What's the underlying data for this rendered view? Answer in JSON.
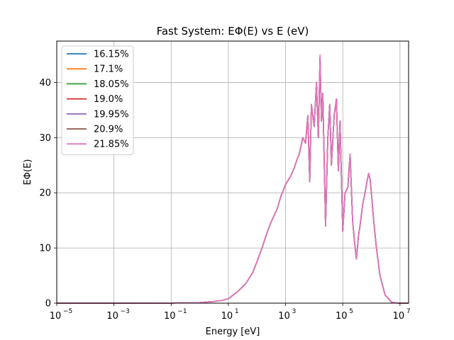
{
  "chart_data": {
    "type": "line",
    "title": "Fast System: EΦ(E) vs E (eV)",
    "xlabel": "Energy [eV]",
    "ylabel": "EΦ(E)",
    "xscale": "log",
    "xlim": [
      1e-05,
      20000000
    ],
    "ylim": [
      0,
      47.5
    ],
    "grid": true,
    "legend_position": "top-left",
    "x_tick_labels": [
      "10",
      "10",
      "10",
      "10",
      "10",
      "10",
      "10"
    ],
    "x_tick_exponents": [
      "−5",
      "−3",
      "−1",
      "1",
      "3",
      "5",
      "7"
    ],
    "x_tick_values": [
      1e-05,
      0.001,
      0.1,
      10,
      1000,
      100000,
      10000000
    ],
    "y_ticks": [
      0,
      10,
      20,
      30,
      40
    ],
    "y_tick_labels": [
      "0",
      "10",
      "20",
      "30",
      "40"
    ],
    "x": [
      1e-05,
      0.001,
      0.1,
      1,
      3,
      6,
      10,
      20,
      40,
      70,
      100,
      150,
      200,
      300,
      500,
      700,
      1000,
      1500,
      2000,
      2500,
      3000,
      4000,
      5000,
      6000,
      7000,
      8000,
      10000,
      12000,
      14000,
      16000,
      18000,
      20000,
      25000,
      30000,
      35000,
      40000,
      50000,
      60000,
      70000,
      80000,
      100000,
      120000,
      150000,
      180000,
      220000,
      270000,
      300000,
      350000,
      400000,
      500000,
      600000,
      700000,
      800000,
      900000,
      1000000,
      1200000,
      1500000,
      2000000,
      3000000,
      5000000,
      7000000,
      10000000,
      14000000,
      20000000
    ],
    "series": [
      {
        "name": "16.15%",
        "color": "#1f77b4",
        "values": [
          0,
          0,
          0.02,
          0.1,
          0.3,
          0.5,
          0.8,
          2.0,
          3.5,
          5.5,
          7.5,
          10,
          12,
          14.5,
          17,
          19.5,
          21.5,
          23,
          24.5,
          26,
          27,
          30,
          29,
          34,
          22,
          36,
          32,
          40,
          30,
          44.5,
          33,
          38,
          14,
          30,
          36,
          25,
          34,
          37,
          24,
          33,
          13,
          20,
          21,
          27,
          15,
          10,
          8,
          12,
          14,
          18,
          20,
          22,
          23.5,
          22.5,
          20,
          15,
          10,
          5,
          1.5,
          0.2,
          0.05,
          0,
          0,
          0
        ]
      },
      {
        "name": "17.1%",
        "color": "#ff7f0e",
        "values": [
          0,
          0,
          0.02,
          0.1,
          0.3,
          0.5,
          0.8,
          2.0,
          3.5,
          5.5,
          7.5,
          10,
          12,
          14.5,
          17,
          19.5,
          21.5,
          23,
          24.5,
          26,
          27,
          30,
          29,
          34,
          22,
          36,
          32,
          40,
          30,
          44.5,
          33,
          38,
          14,
          30,
          36,
          25,
          34,
          37,
          24,
          33,
          13,
          20,
          21,
          27,
          15,
          10,
          8,
          12,
          14,
          18,
          20,
          22,
          23.5,
          22.5,
          20,
          15,
          10,
          5,
          1.5,
          0.2,
          0.05,
          0,
          0,
          0
        ]
      },
      {
        "name": "18.05%",
        "color": "#2ca02c",
        "values": [
          0,
          0,
          0.02,
          0.1,
          0.3,
          0.5,
          0.8,
          2.0,
          3.5,
          5.5,
          7.5,
          10,
          12,
          14.5,
          17,
          19.5,
          21.5,
          23,
          24.5,
          26,
          27,
          30,
          29,
          34,
          22,
          36,
          32,
          40,
          30,
          44.5,
          33,
          38,
          14,
          30,
          36,
          25,
          34,
          37,
          24,
          33,
          13,
          20,
          21,
          27,
          15,
          10,
          8,
          12,
          14,
          18,
          20,
          22,
          23.5,
          22.5,
          20,
          15,
          10,
          5,
          1.5,
          0.2,
          0.05,
          0,
          0,
          0
        ]
      },
      {
        "name": "19.0%",
        "color": "#d62728",
        "values": [
          0,
          0,
          0.02,
          0.1,
          0.3,
          0.5,
          0.8,
          2.0,
          3.5,
          5.5,
          7.5,
          10,
          12,
          14.5,
          17,
          19.5,
          21.5,
          23,
          24.5,
          26,
          27,
          30,
          29,
          34,
          22,
          36,
          32,
          40,
          30,
          44.5,
          33,
          38,
          14,
          30,
          36,
          25,
          34,
          37,
          24,
          33,
          13,
          20,
          21,
          27,
          15,
          10,
          8,
          12,
          14,
          18,
          20,
          22,
          23.5,
          22.5,
          20,
          15,
          10,
          5,
          1.5,
          0.2,
          0.05,
          0,
          0,
          0
        ]
      },
      {
        "name": "19.95%",
        "color": "#9467bd",
        "values": [
          0,
          0,
          0.02,
          0.1,
          0.3,
          0.5,
          0.8,
          2.0,
          3.5,
          5.5,
          7.5,
          10,
          12,
          14.5,
          17,
          19.5,
          21.5,
          23,
          24.5,
          26,
          27,
          30,
          29,
          34,
          22,
          36,
          32,
          40,
          30,
          44.5,
          33,
          38,
          14,
          30,
          36,
          25,
          34,
          37,
          24,
          33,
          13,
          20,
          21,
          27,
          15,
          10,
          8,
          12,
          14,
          18,
          20,
          22,
          23.5,
          22.5,
          20,
          15,
          10,
          5,
          1.5,
          0.2,
          0.05,
          0,
          0,
          0
        ]
      },
      {
        "name": "20.9%",
        "color": "#8c564b",
        "values": [
          0,
          0,
          0.02,
          0.1,
          0.3,
          0.5,
          0.8,
          2.0,
          3.5,
          5.5,
          7.5,
          10,
          12,
          14.5,
          17,
          19.5,
          21.5,
          23,
          24.5,
          26,
          27,
          30,
          29,
          34,
          22,
          36,
          32,
          40,
          30,
          44.5,
          33,
          38,
          14,
          30,
          36,
          25,
          34,
          37,
          24,
          33,
          13,
          20,
          21,
          27,
          15,
          10,
          8,
          12,
          14,
          18,
          20,
          22,
          23.5,
          22.5,
          20,
          15,
          10,
          5,
          1.5,
          0.2,
          0.05,
          0,
          0,
          0
        ]
      },
      {
        "name": "21.85%",
        "color": "#e377c2",
        "values": [
          0,
          0,
          0.02,
          0.1,
          0.3,
          0.5,
          0.8,
          2.0,
          3.5,
          5.5,
          7.5,
          10,
          12,
          14.5,
          17,
          19.5,
          21.5,
          23,
          24.5,
          26,
          27,
          30,
          29,
          34,
          22,
          36,
          32,
          40,
          30,
          45,
          33,
          38,
          14,
          30,
          36,
          25,
          34,
          37,
          24,
          33,
          13,
          20,
          21,
          27,
          15,
          10,
          8,
          12,
          14,
          18,
          20,
          22,
          23.5,
          22.5,
          20,
          15,
          10,
          5,
          1.5,
          0.2,
          0.05,
          0,
          0,
          0
        ]
      }
    ]
  }
}
